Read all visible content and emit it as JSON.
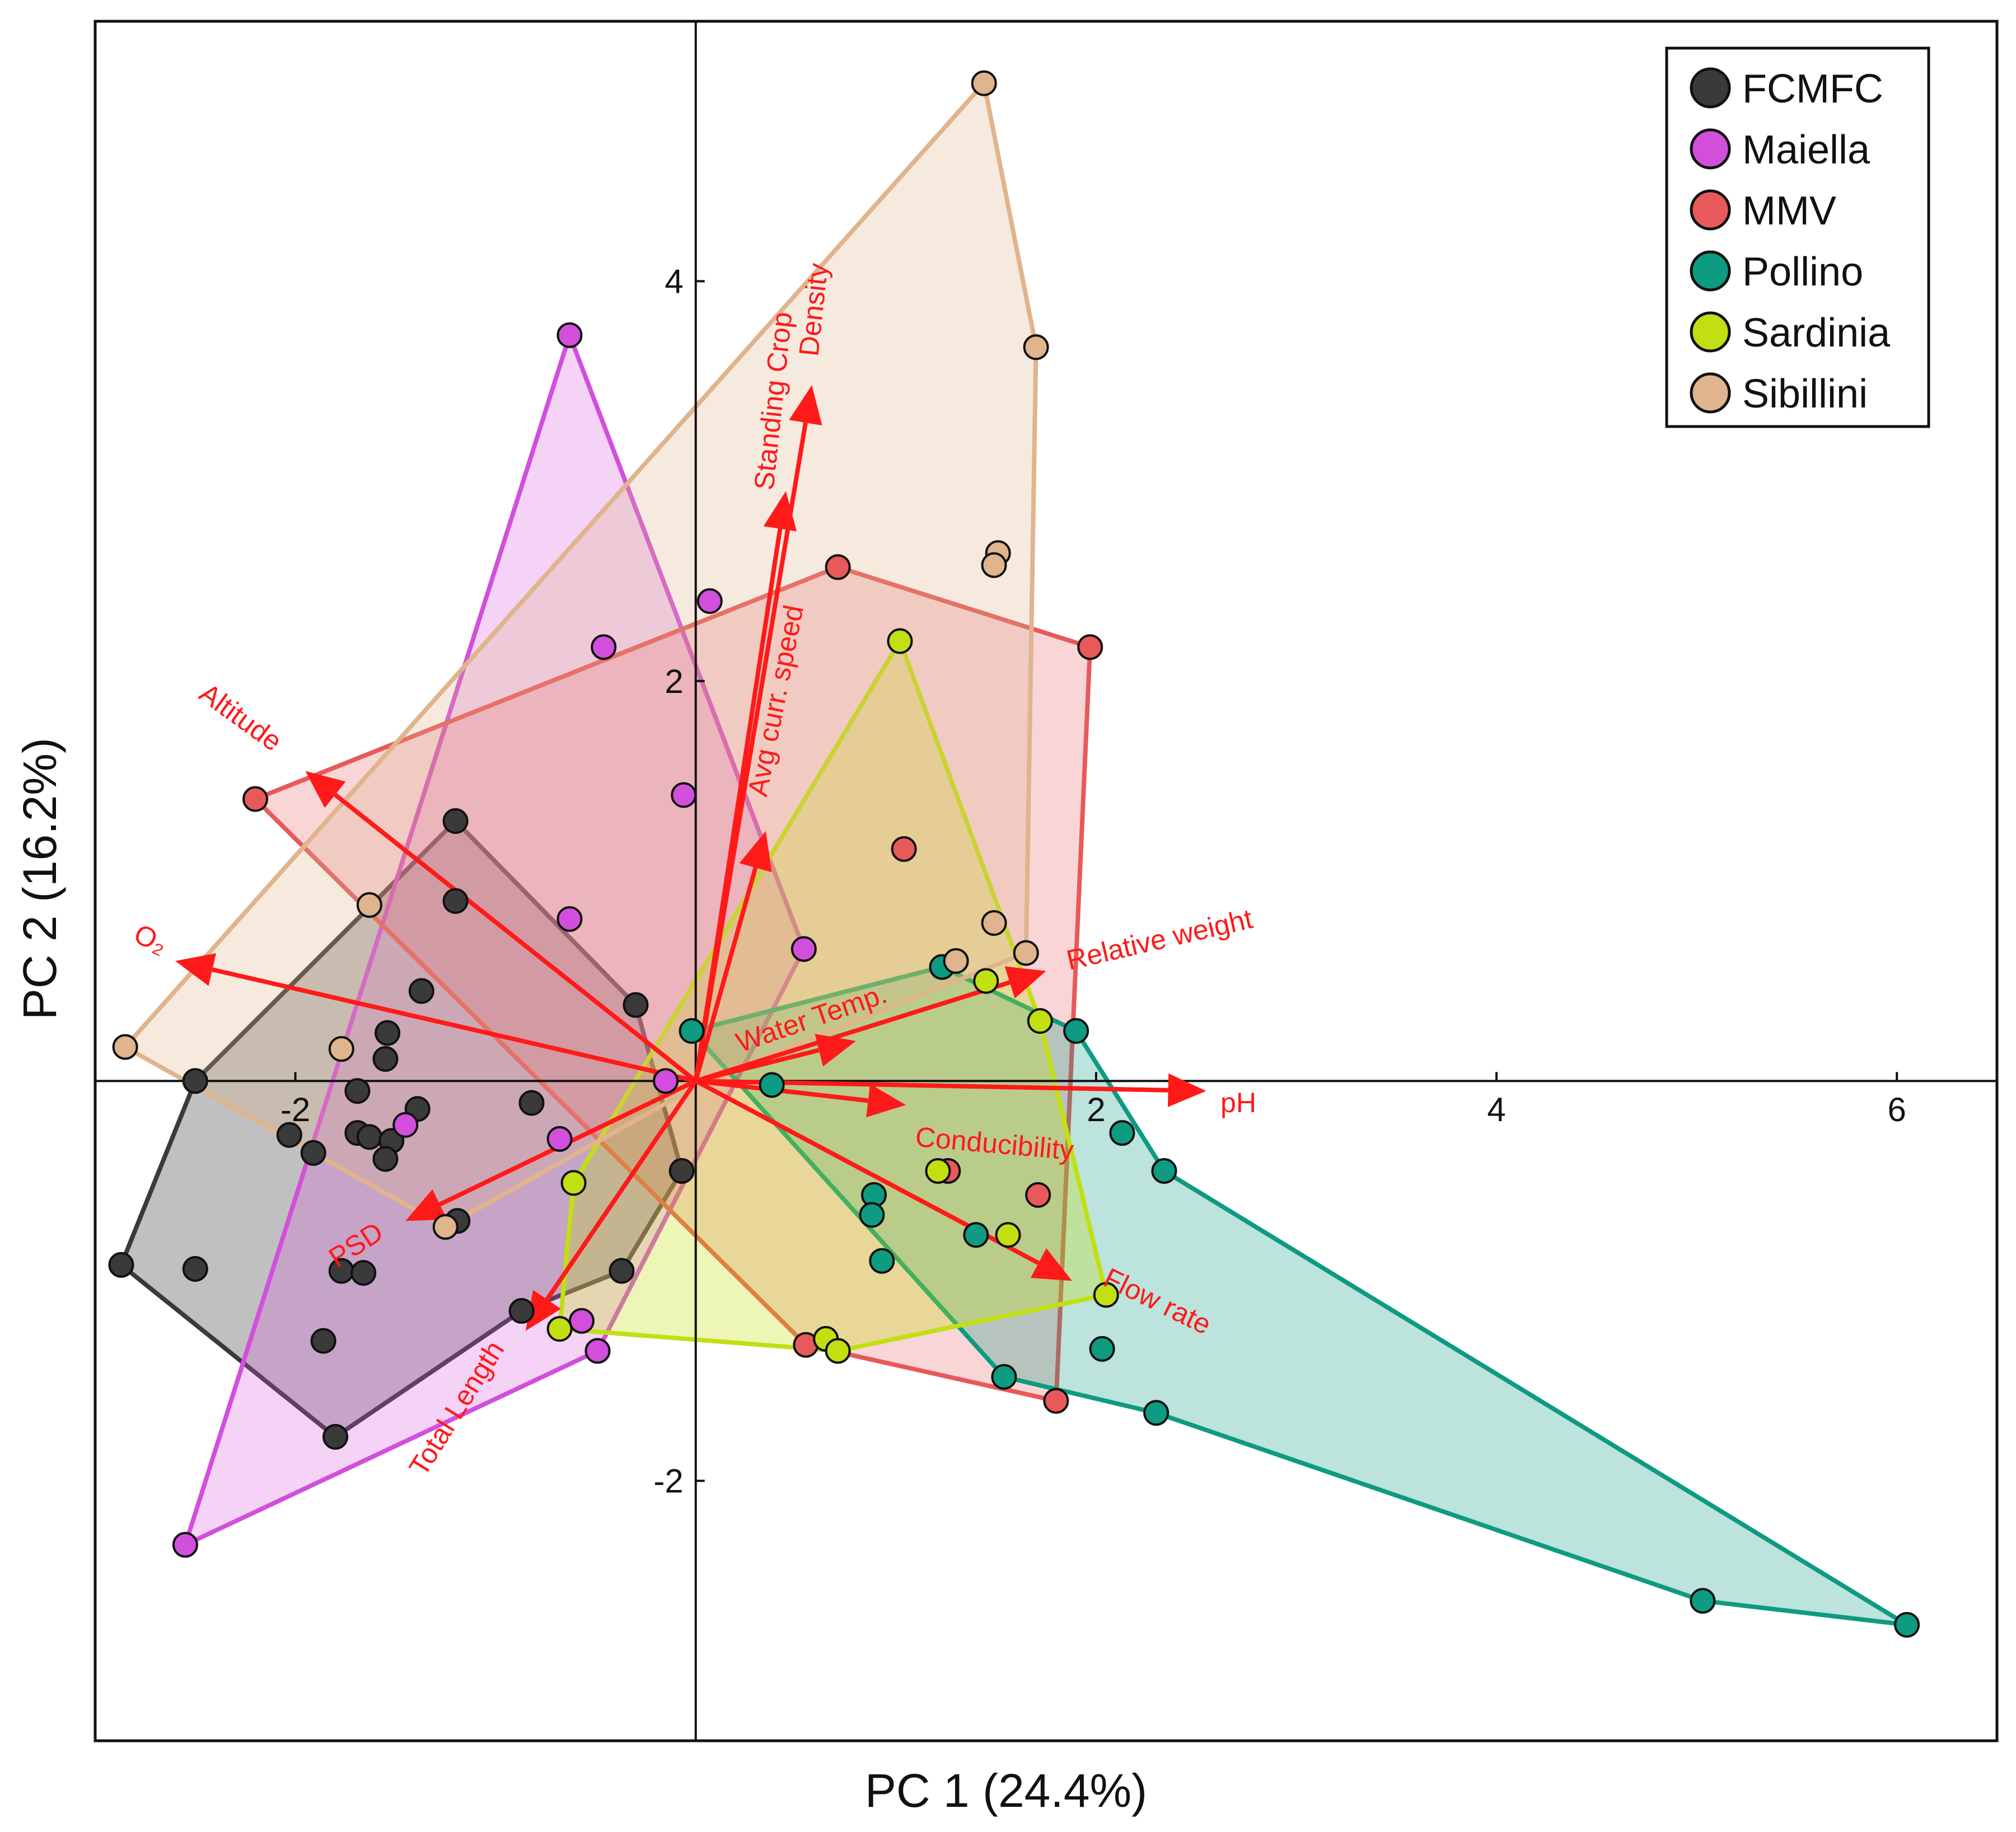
{
  "chart_data": {
    "type": "scatter",
    "subtype": "PCA biplot with convex hulls",
    "xlabel": "PC 1 (24.4%)",
    "ylabel": "PC 2 (16.2%)",
    "xlim": [
      -3.0,
      6.5
    ],
    "ylim": [
      -3.3,
      5.3
    ],
    "xticks": [
      -2,
      2,
      4,
      6
    ],
    "yticks": [
      -2,
      2,
      4
    ],
    "xtick_labels": [
      "-2",
      "2",
      "4",
      "6"
    ],
    "ytick_labels": [
      "-2",
      "2",
      "4"
    ],
    "legend_position": "top-right",
    "series": [
      {
        "name": "FCMFC",
        "color": "#3a3a3a",
        "fill_opacity": 0.32,
        "hull": [
          [
            -2.5,
            0.0
          ],
          [
            -1.2,
            1.3
          ],
          [
            -0.3,
            0.38
          ],
          [
            -0.07,
            -0.45
          ],
          [
            -0.37,
            -0.95
          ],
          [
            -0.87,
            -1.15
          ],
          [
            -1.8,
            -1.78
          ],
          [
            -2.87,
            -0.92
          ]
        ],
        "points": [
          [
            -2.5,
            0.0
          ],
          [
            -1.2,
            1.3
          ],
          [
            -1.2,
            0.9
          ],
          [
            -0.3,
            0.38
          ],
          [
            -1.37,
            0.45
          ],
          [
            -1.54,
            0.24
          ],
          [
            -1.55,
            0.11
          ],
          [
            -1.69,
            -0.05
          ],
          [
            -1.69,
            -0.26
          ],
          [
            -1.63,
            -0.28
          ],
          [
            -1.52,
            -0.3
          ],
          [
            -1.55,
            -0.39
          ],
          [
            -1.39,
            -0.14
          ],
          [
            -0.82,
            -0.11
          ],
          [
            -2.03,
            -0.27
          ],
          [
            -1.91,
            -0.36
          ],
          [
            -0.07,
            -0.45
          ],
          [
            -1.19,
            -0.7
          ],
          [
            -0.37,
            -0.95
          ],
          [
            -0.87,
            -1.15
          ],
          [
            -1.8,
            -1.78
          ],
          [
            -2.87,
            -0.92
          ],
          [
            -2.5,
            -0.94
          ],
          [
            -1.77,
            -0.95
          ],
          [
            -1.66,
            -0.96
          ],
          [
            -1.86,
            -1.3
          ]
        ]
      },
      {
        "name": "Maiella",
        "color": "#d24fdc",
        "fill_opacity": 0.25,
        "hull": [
          [
            -0.63,
            3.73
          ],
          [
            0.54,
            0.66
          ],
          [
            -0.49,
            -1.35
          ],
          [
            -2.55,
            -2.32
          ]
        ],
        "points": [
          [
            -0.63,
            3.73
          ],
          [
            0.07,
            2.4
          ],
          [
            -0.46,
            2.17
          ],
          [
            -0.06,
            1.43
          ],
          [
            -0.63,
            0.81
          ],
          [
            0.54,
            0.66
          ],
          [
            -0.15,
            0.0
          ],
          [
            -1.45,
            -0.22
          ],
          [
            -0.68,
            -0.29
          ],
          [
            -0.57,
            -1.2
          ],
          [
            -0.49,
            -1.35
          ],
          [
            -2.55,
            -2.32
          ]
        ]
      },
      {
        "name": "MMV",
        "color": "#e8595a",
        "fill_opacity": 0.25,
        "hull": [
          [
            -2.2,
            1.41
          ],
          [
            0.71,
            2.57
          ],
          [
            1.97,
            2.17
          ],
          [
            1.8,
            -1.6
          ],
          [
            0.55,
            -1.32
          ]
        ],
        "points": [
          [
            -2.2,
            1.41
          ],
          [
            0.71,
            2.57
          ],
          [
            1.97,
            2.17
          ],
          [
            1.04,
            1.16
          ],
          [
            1.26,
            -0.45
          ],
          [
            1.71,
            -0.57
          ],
          [
            1.8,
            -1.6
          ],
          [
            0.55,
            -1.32
          ]
        ]
      },
      {
        "name": "Pollino",
        "color": "#0d9b82",
        "fill_opacity": 0.28,
        "hull": [
          [
            -0.02,
            0.25
          ],
          [
            1.23,
            0.57
          ],
          [
            1.9,
            0.25
          ],
          [
            2.34,
            -0.45
          ],
          [
            6.05,
            -2.72
          ],
          [
            5.03,
            -2.6
          ],
          [
            2.3,
            -1.66
          ],
          [
            1.54,
            -1.48
          ]
        ],
        "points": [
          [
            -0.02,
            0.25
          ],
          [
            1.23,
            0.57
          ],
          [
            1.9,
            0.25
          ],
          [
            0.38,
            -0.02
          ],
          [
            2.13,
            -0.26
          ],
          [
            2.34,
            -0.45
          ],
          [
            0.89,
            -0.57
          ],
          [
            0.88,
            -0.67
          ],
          [
            1.4,
            -0.77
          ],
          [
            0.93,
            -0.9
          ],
          [
            2.03,
            -1.34
          ],
          [
            1.54,
            -1.48
          ],
          [
            2.3,
            -1.66
          ],
          [
            5.03,
            -2.6
          ],
          [
            6.05,
            -2.72
          ]
        ]
      },
      {
        "name": "Sardinia",
        "color": "#c2df12",
        "fill_opacity": 0.3,
        "hull": [
          [
            1.02,
            2.2
          ],
          [
            1.72,
            0.3
          ],
          [
            2.05,
            -1.07
          ],
          [
            0.71,
            -1.35
          ],
          [
            -0.68,
            -1.24
          ],
          [
            -0.61,
            -0.51
          ]
        ],
        "points": [
          [
            1.02,
            2.2
          ],
          [
            1.45,
            0.5
          ],
          [
            1.72,
            0.3
          ],
          [
            1.21,
            -0.45
          ],
          [
            1.56,
            -0.77
          ],
          [
            -0.61,
            -0.51
          ],
          [
            -0.68,
            -1.24
          ],
          [
            0.65,
            -1.29
          ],
          [
            0.71,
            -1.35
          ],
          [
            2.05,
            -1.07
          ]
        ]
      },
      {
        "name": "Sibillini",
        "color": "#e0b48c",
        "fill_opacity": 0.28,
        "hull": [
          [
            1.44,
            4.99
          ],
          [
            1.7,
            3.67
          ],
          [
            1.65,
            0.64
          ],
          [
            0.05,
            0.0
          ],
          [
            -1.25,
            -0.73
          ],
          [
            -2.85,
            0.17
          ]
        ],
        "points": [
          [
            1.44,
            4.99
          ],
          [
            1.7,
            3.67
          ],
          [
            1.51,
            2.64
          ],
          [
            1.49,
            2.58
          ],
          [
            1.49,
            0.79
          ],
          [
            1.65,
            0.64
          ],
          [
            1.3,
            0.6
          ],
          [
            -1.63,
            0.88
          ],
          [
            -1.77,
            0.16
          ],
          [
            -2.85,
            0.17
          ],
          [
            -1.25,
            -0.73
          ]
        ]
      }
    ],
    "vectors": [
      {
        "name": "Altitude",
        "label": "Altitude",
        "end": [
          -1.95,
          1.55
        ]
      },
      {
        "name": "O2",
        "label": "O₂",
        "end": [
          -2.6,
          0.6
        ]
      },
      {
        "name": "PSD",
        "label": "PSD",
        "end": [
          -1.45,
          -0.7
        ]
      },
      {
        "name": "Total Length",
        "label": "Total Length",
        "end": [
          -0.85,
          -1.25
        ]
      },
      {
        "name": "Standing Crop",
        "label": "Standing Crop",
        "end": [
          0.45,
          2.95
        ]
      },
      {
        "name": "Density",
        "label": "Density",
        "end": [
          0.58,
          3.48
        ]
      },
      {
        "name": "Avg curr. speed",
        "label": "Avg curr. speed",
        "end": [
          0.35,
          1.25
        ]
      },
      {
        "name": "Relative weight",
        "label": "Relative weight",
        "end": [
          1.75,
          0.55
        ]
      },
      {
        "name": "Water Temp.",
        "label": "Water Temp.",
        "end": [
          0.8,
          0.2
        ]
      },
      {
        "name": "pH",
        "label": "pH",
        "end": [
          2.55,
          -0.05
        ]
      },
      {
        "name": "Conducibility",
        "label": "Conducibility",
        "end": [
          1.05,
          -0.12
        ]
      },
      {
        "name": "Flow rate",
        "label": "Flow rate",
        "end": [
          1.88,
          -1.0
        ]
      }
    ]
  }
}
